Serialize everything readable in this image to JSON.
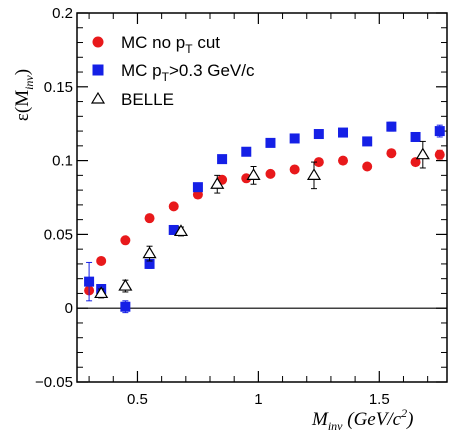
{
  "chart_data": {
    "type": "scatter",
    "xlabel": {
      "main": "M",
      "sub": "inv",
      "rest": " (GeV/c",
      "sup": "2",
      "close": ")"
    },
    "ylabel": {
      "main": "ε(M",
      "sub": "inv",
      "close": ")"
    },
    "xlim": [
      0.25,
      1.78
    ],
    "ylim": [
      -0.05,
      0.2
    ],
    "xticks": [
      0.5,
      1,
      1.5
    ],
    "xtick_labels": [
      "0.5",
      "1",
      "1.5"
    ],
    "yticks": [
      -0.05,
      0,
      0.05,
      0.1,
      0.15,
      0.2
    ],
    "ytick_labels": [
      "−0.05",
      "0",
      "0.05",
      "0.1",
      "0.15",
      "0.2"
    ],
    "grid": false,
    "legend_placement": "top-left",
    "series": [
      {
        "name": "MC no pT cut",
        "label_parts": {
          "pre": "MC no p",
          "sub": "T",
          "post": " cut"
        },
        "marker": "circle",
        "color": "#e8191b",
        "x": [
          0.3,
          0.35,
          0.45,
          0.55,
          0.65,
          0.75,
          0.85,
          0.95,
          1.05,
          1.15,
          1.25,
          1.35,
          1.45,
          1.55,
          1.65,
          1.75
        ],
        "y": [
          0.012,
          0.032,
          0.046,
          0.061,
          0.069,
          0.077,
          0.087,
          0.088,
          0.091,
          0.094,
          0.099,
          0.1,
          0.096,
          0.105,
          0.099,
          0.104
        ],
        "err": [
          0.002,
          0.002,
          0.002,
          0.002,
          0.002,
          0.002,
          0.002,
          0.002,
          0.002,
          0.002,
          0.002,
          0.002,
          0.002,
          0.002,
          0.002,
          0.003
        ]
      },
      {
        "name": "MC pT>0.3 GeV/c",
        "label_parts": {
          "pre": "MC p",
          "sub": "T",
          "post": ">0.3 GeV/c"
        },
        "marker": "square",
        "color": "#1520e6",
        "x": [
          0.3,
          0.35,
          0.45,
          0.55,
          0.65,
          0.75,
          0.85,
          0.95,
          1.05,
          1.15,
          1.25,
          1.35,
          1.45,
          1.55,
          1.65,
          1.75
        ],
        "y": [
          0.018,
          0.013,
          0.001,
          0.03,
          0.053,
          0.082,
          0.101,
          0.106,
          0.112,
          0.115,
          0.118,
          0.119,
          0.113,
          0.123,
          0.116,
          0.12
        ],
        "err": [
          0.013,
          0.003,
          0.004,
          0.003,
          0.002,
          0.002,
          0.002,
          0.002,
          0.002,
          0.002,
          0.002,
          0.002,
          0.002,
          0.003,
          0.003,
          0.004
        ]
      },
      {
        "name": "BELLE",
        "label_parts": {
          "pre": "BELLE",
          "sub": "",
          "post": ""
        },
        "marker": "open-triangle",
        "color": "#000000",
        "x": [
          0.35,
          0.45,
          0.55,
          0.68,
          0.83,
          0.98,
          1.23,
          1.68
        ],
        "y": [
          0.01,
          0.015,
          0.037,
          0.052,
          0.084,
          0.09,
          0.09,
          0.104
        ],
        "err": [
          0.003,
          0.004,
          0.005,
          0.003,
          0.006,
          0.006,
          0.009,
          0.009
        ]
      }
    ]
  }
}
